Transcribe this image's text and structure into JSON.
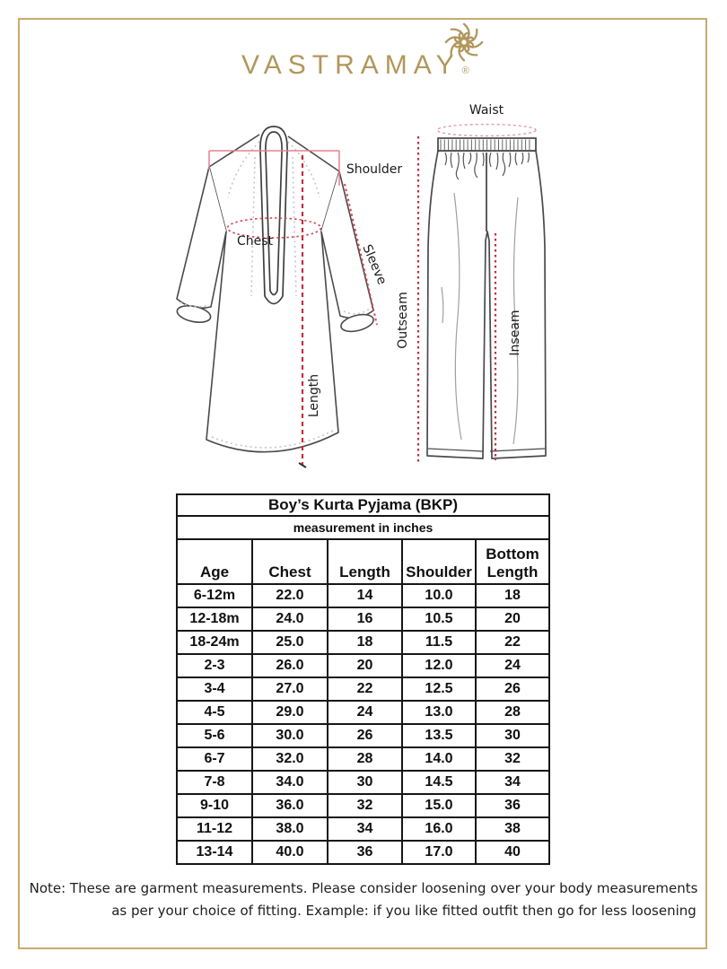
{
  "brand": {
    "name": "VASTRAMAY",
    "registered_mark": "®"
  },
  "diagram": {
    "labels": {
      "shoulder": "Shoulder",
      "chest": "Chest",
      "sleeve": "Sleeve",
      "length": "Length",
      "waist": "Waist",
      "outseam": "Outseam",
      "inseam": "Inseam"
    }
  },
  "size_chart": {
    "title": "Boy’s Kurta Pyjama (BKP)",
    "subtitle": "measurement in inches",
    "columns": [
      "Age",
      "Chest",
      "Length",
      "Shoulder",
      "Bottom Length"
    ],
    "rows": [
      [
        "6-12m",
        "22.0",
        "14",
        "10.0",
        "18"
      ],
      [
        "12-18m",
        "24.0",
        "16",
        "10.5",
        "20"
      ],
      [
        "18-24m",
        "25.0",
        "18",
        "11.5",
        "22"
      ],
      [
        "2-3",
        "26.0",
        "20",
        "12.0",
        "24"
      ],
      [
        "3-4",
        "27.0",
        "22",
        "12.5",
        "26"
      ],
      [
        "4-5",
        "29.0",
        "24",
        "13.0",
        "28"
      ],
      [
        "5-6",
        "30.0",
        "26",
        "13.5",
        "30"
      ],
      [
        "6-7",
        "32.0",
        "28",
        "14.0",
        "32"
      ],
      [
        "7-8",
        "34.0",
        "30",
        "14.5",
        "34"
      ],
      [
        "9-10",
        "36.0",
        "32",
        "15.0",
        "36"
      ],
      [
        "11-12",
        "38.0",
        "34",
        "16.0",
        "38"
      ],
      [
        "13-14",
        "40.0",
        "36",
        "17.0",
        "40"
      ]
    ]
  },
  "note": {
    "lines": [
      "Note: These are garment measurements. Please consider loosening over your body measurements",
      "as per your choice of fitting. Example: if you like fitted outfit then go for less loosening"
    ]
  },
  "colors": {
    "brand_gold": "#b2975c",
    "frame_gold": "#c7ac6e",
    "measure_red": "#c0303f",
    "measure_pink": "#e5808e",
    "waist_pink": "#e79aa5"
  }
}
